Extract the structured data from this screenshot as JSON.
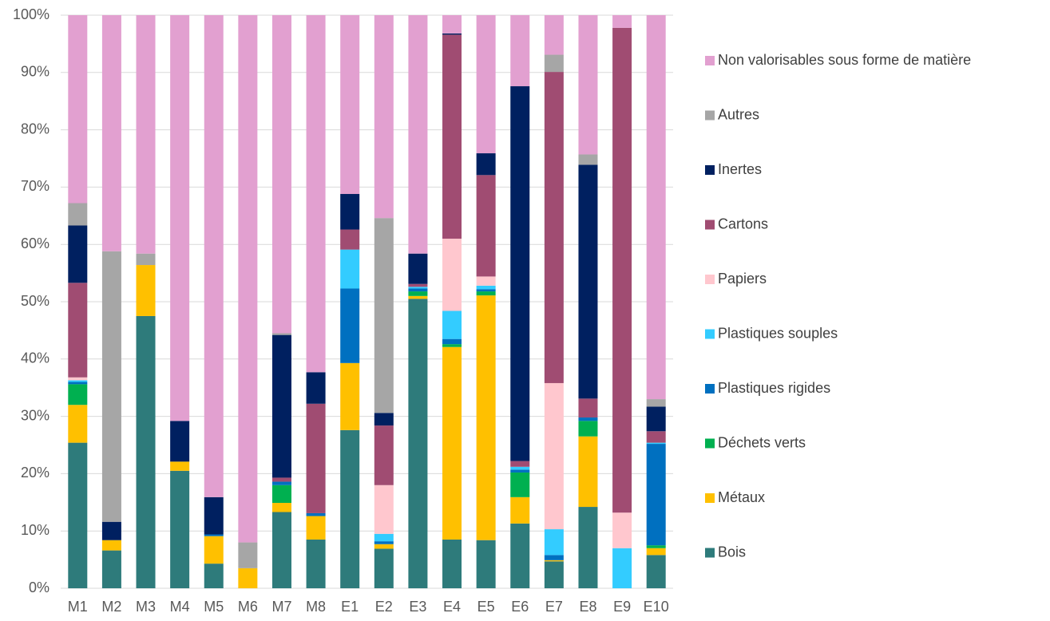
{
  "chart_data": {
    "type": "stacked_bar_100",
    "categories": [
      "M1",
      "M2",
      "M3",
      "M4",
      "M5",
      "M6",
      "M7",
      "M8",
      "E1",
      "E2",
      "E3",
      "E4",
      "E5",
      "E6",
      "E7",
      "E8",
      "E9",
      "E10"
    ],
    "ylim": [
      0,
      100
    ],
    "yticks": [
      {
        "value": 0,
        "label": "0%"
      },
      {
        "value": 10,
        "label": "10%"
      },
      {
        "value": 20,
        "label": "20%"
      },
      {
        "value": 30,
        "label": "30%"
      },
      {
        "value": 40,
        "label": "40%"
      },
      {
        "value": 50,
        "label": "50%"
      },
      {
        "value": 60,
        "label": "60%"
      },
      {
        "value": 70,
        "label": "70%"
      },
      {
        "value": 80,
        "label": "80%"
      },
      {
        "value": 90,
        "label": "90%"
      },
      {
        "value": 100,
        "label": "100%"
      }
    ],
    "grid": true,
    "legend": "right",
    "series": [
      {
        "name": "Bois",
        "color": "#2e7b7b",
        "values": [
          25.4,
          6.6,
          47.5,
          20.5,
          4.3,
          0,
          13.3,
          8.5,
          27.6,
          6.9,
          50.5,
          8.5,
          8.4,
          11.3,
          4.7,
          14.2,
          0,
          5.8
        ]
      },
      {
        "name": "Métaux",
        "color": "#ffc000",
        "values": [
          6.6,
          1.8,
          8.9,
          1.6,
          4.8,
          3.5,
          1.6,
          4.1,
          11.7,
          0.8,
          0.5,
          33.6,
          42.7,
          4.6,
          0.2,
          12.3,
          0,
          1.2
        ]
      },
      {
        "name": "Déchets verts",
        "color": "#00b050",
        "values": [
          3.6,
          0,
          0,
          0,
          0,
          0,
          3.1,
          0,
          0,
          0,
          0.8,
          0.5,
          0.7,
          4.3,
          0,
          2.7,
          0,
          0.5
        ]
      },
      {
        "name": "Plastiques rigides",
        "color": "#0070c0",
        "values": [
          0.4,
          0,
          0,
          0,
          0.3,
          0,
          0.6,
          0.5,
          13.0,
          0.5,
          0.5,
          0.9,
          0.4,
          0.5,
          0.9,
          0.6,
          0,
          17.7
        ]
      },
      {
        "name": "Plastiques souples",
        "color": "#33ccff",
        "values": [
          0.3,
          0,
          0,
          0,
          0,
          0,
          0,
          0,
          6.8,
          1.3,
          0.3,
          4.9,
          0.6,
          0.5,
          4.5,
          0,
          7.0,
          0.2
        ]
      },
      {
        "name": "Papiers",
        "color": "#ffc7ce",
        "values": [
          0.5,
          0,
          0,
          0,
          0,
          0,
          0,
          0,
          0,
          8.5,
          0,
          12.6,
          1.6,
          0,
          25.5,
          0,
          6.2,
          0
        ]
      },
      {
        "name": "Cartons",
        "color": "#a04c72",
        "values": [
          16.5,
          0,
          0,
          0,
          0,
          0,
          0.7,
          19.1,
          3.5,
          10.4,
          0.5,
          35.6,
          17.7,
          1.0,
          54.3,
          3.3,
          84.6,
          2.0
        ]
      },
      {
        "name": "Inertes",
        "color": "#002060",
        "values": [
          10.0,
          3.2,
          0,
          7.1,
          6.5,
          0,
          24.9,
          5.5,
          6.2,
          2.2,
          5.3,
          0.2,
          3.8,
          65.4,
          0,
          40.8,
          0,
          4.3
        ]
      },
      {
        "name": "Autres",
        "color": "#a6a6a6",
        "values": [
          3.9,
          47.2,
          2.0,
          0,
          0,
          4.5,
          0.3,
          0,
          0,
          34.0,
          0,
          0,
          0,
          0,
          3.0,
          1.8,
          0,
          1.3
        ]
      },
      {
        "name": "Non valorisables sous forme de matière",
        "color": "#e2a0d0",
        "values": [
          32.8,
          41.2,
          41.6,
          70.8,
          84.1,
          92.0,
          55.5,
          62.3,
          31.2,
          35.4,
          41.6,
          3.2,
          24.1,
          12.4,
          6.9,
          24.3,
          2.2,
          67.0
        ]
      }
    ]
  }
}
